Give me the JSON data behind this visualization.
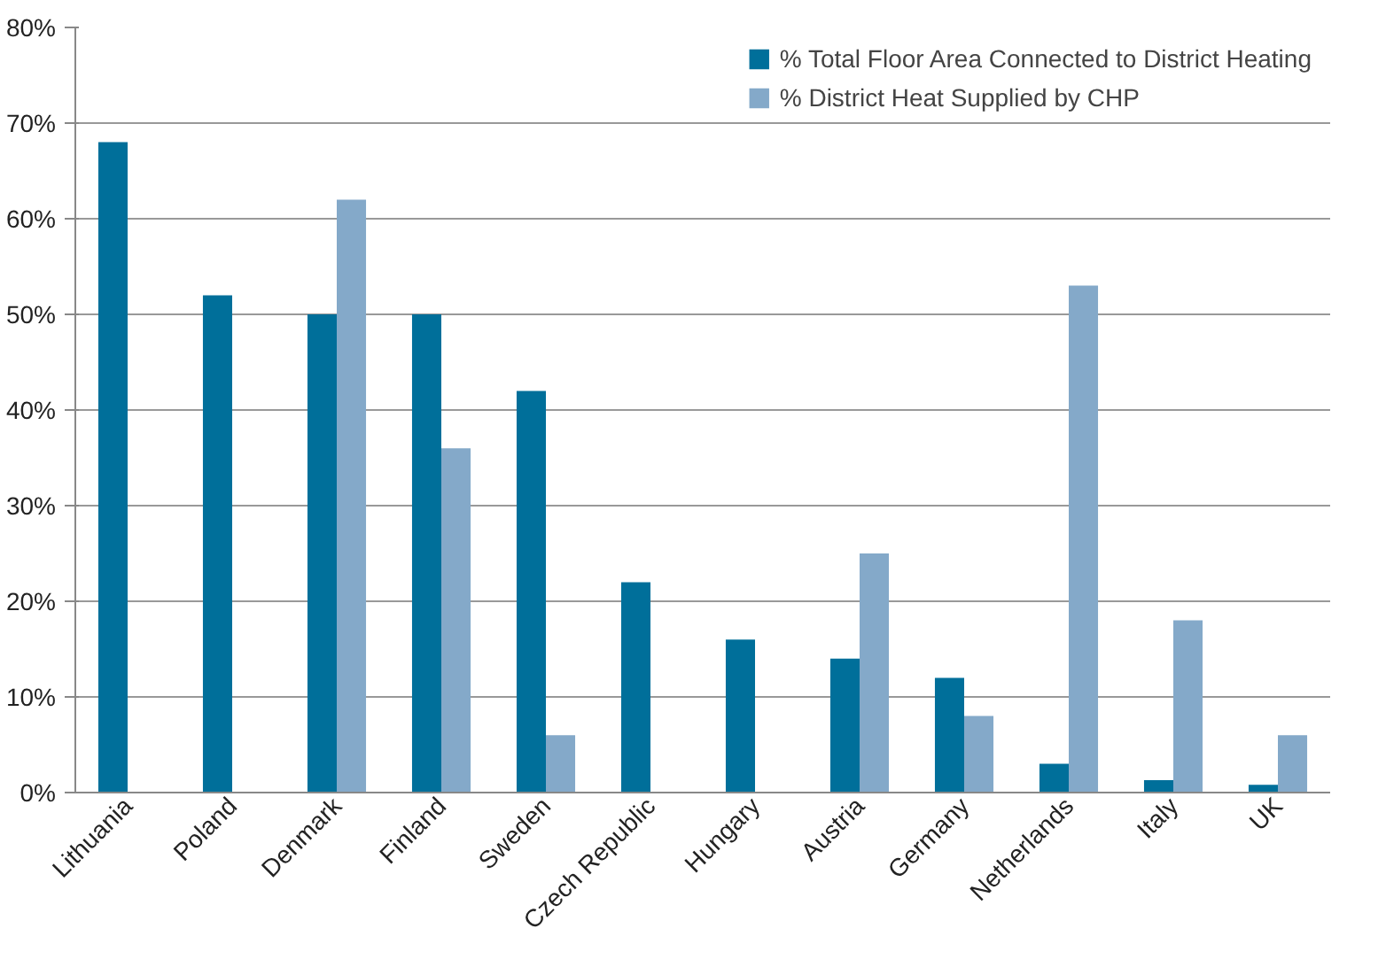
{
  "chart_data": {
    "type": "bar",
    "categories": [
      "Lithuania",
      "Poland",
      "Denmark",
      "Finland",
      "Sweden",
      "Czech Republic",
      "Hungary",
      "Austria",
      "Germany",
      "Netherlands",
      "Italy",
      "UK"
    ],
    "series": [
      {
        "name": "% Total Floor Area Connected to District Heating",
        "color": "#006f9a",
        "values": [
          68,
          52,
          50,
          50,
          42,
          22,
          16,
          14,
          12,
          3,
          1.3,
          0.8
        ]
      },
      {
        "name": "% District Heat Supplied by CHP",
        "color": "#84a9c9",
        "values": [
          null,
          null,
          62,
          36,
          6,
          null,
          null,
          25,
          8,
          53,
          18,
          6
        ]
      }
    ],
    "ylim": [
      0,
      80
    ],
    "yticks": [
      {
        "value": 0,
        "label": "0%"
      },
      {
        "value": 10,
        "label": "10%"
      },
      {
        "value": 20,
        "label": "20%"
      },
      {
        "value": 30,
        "label": "30%"
      },
      {
        "value": 40,
        "label": "40%"
      },
      {
        "value": 50,
        "label": "50%"
      },
      {
        "value": 60,
        "label": "60%"
      },
      {
        "value": 70,
        "label": "70%"
      },
      {
        "value": 80,
        "label": "80%"
      }
    ],
    "grid": "y",
    "legend": "top right"
  }
}
